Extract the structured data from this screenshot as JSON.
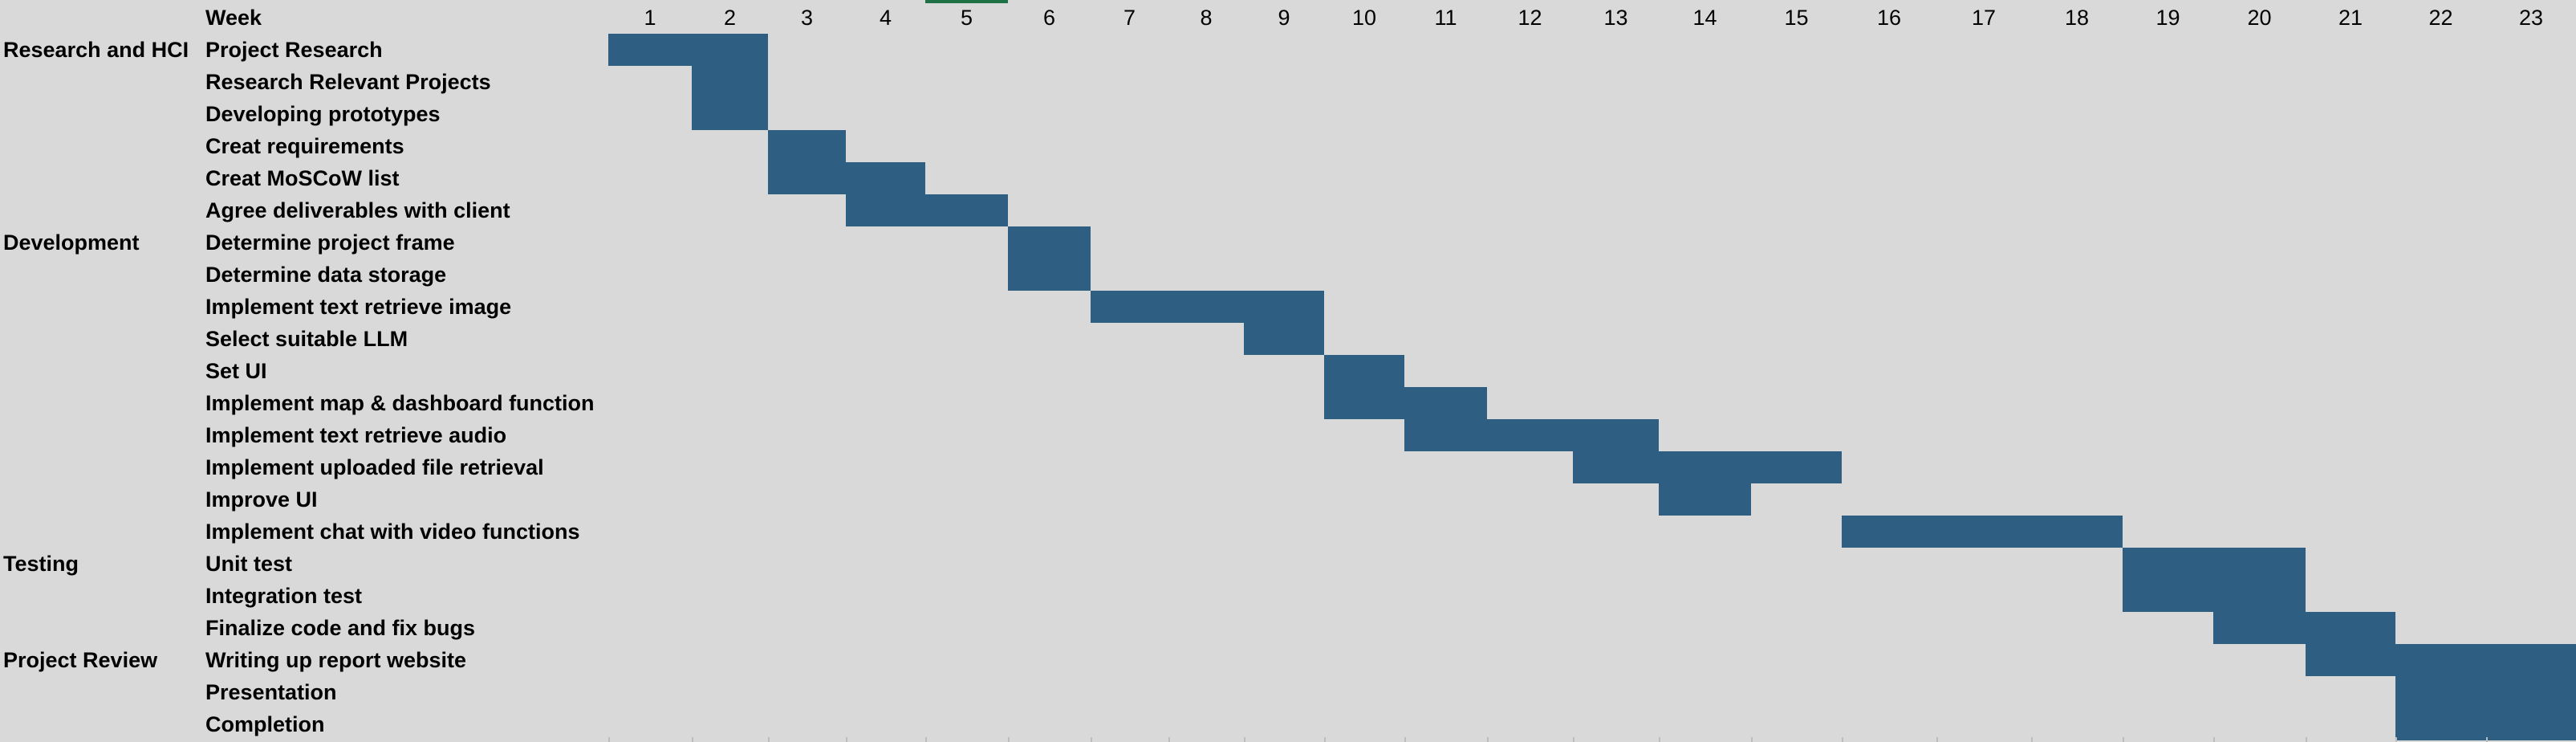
{
  "header": {
    "week_label": "Week"
  },
  "colors": {
    "background": "#d9d9d9",
    "bar": "#2e5f82",
    "selection": "#1e7145"
  },
  "weeks": [
    "1",
    "2",
    "3",
    "4",
    "5",
    "6",
    "7",
    "8",
    "9",
    "10",
    "11",
    "12",
    "13",
    "14",
    "15",
    "16",
    "17",
    "18",
    "19",
    "20",
    "21",
    "22",
    "23"
  ],
  "chart_data": {
    "type": "gantt",
    "x_unit": "week",
    "x_range": [
      1,
      23
    ],
    "phases": [
      {
        "name": "Research and HCI",
        "starts_at_task": 0
      },
      {
        "name": "Development",
        "starts_at_task": 6
      },
      {
        "name": "Testing",
        "starts_at_task": 16
      },
      {
        "name": "Project Review",
        "starts_at_task": 19
      }
    ],
    "tasks": [
      {
        "name": "Project Research",
        "start": 1,
        "end": 2
      },
      {
        "name": "Research Relevant Projects",
        "start": 2,
        "end": 2
      },
      {
        "name": "Developing prototypes",
        "start": 2,
        "end": 2
      },
      {
        "name": "Creat requirements",
        "start": 3,
        "end": 3
      },
      {
        "name": "Creat MoSCoW list",
        "start": 3,
        "end": 4
      },
      {
        "name": "Agree deliverables with client",
        "start": 4,
        "end": 5
      },
      {
        "name": "Determine project frame",
        "start": 6,
        "end": 6
      },
      {
        "name": "Determine data storage",
        "start": 6,
        "end": 6
      },
      {
        "name": "Implement text retrieve image",
        "start": 7,
        "end": 9
      },
      {
        "name": "Select suitable LLM",
        "start": 9,
        "end": 9
      },
      {
        "name": "Set UI",
        "start": 10,
        "end": 10
      },
      {
        "name": "Implement map & dashboard function",
        "start": 10,
        "end": 11
      },
      {
        "name": "Implement text retrieve audio",
        "start": 11,
        "end": 13
      },
      {
        "name": "Implement uploaded file retrieval",
        "start": 13,
        "end": 15
      },
      {
        "name": "Improve UI",
        "start": 14,
        "end": 14
      },
      {
        "name": "Implement chat with video functions",
        "start": 16,
        "end": 18
      },
      {
        "name": "Unit test",
        "start": 19,
        "end": 20
      },
      {
        "name": "Integration test",
        "start": 19,
        "end": 20
      },
      {
        "name": "Finalize code and fix bugs",
        "start": 20,
        "end": 21
      },
      {
        "name": "Writing up report website",
        "start": 21,
        "end": 23
      },
      {
        "name": "Presentation",
        "start": 22,
        "end": 23
      },
      {
        "name": "Completion",
        "start": 22,
        "end": 23
      }
    ]
  }
}
